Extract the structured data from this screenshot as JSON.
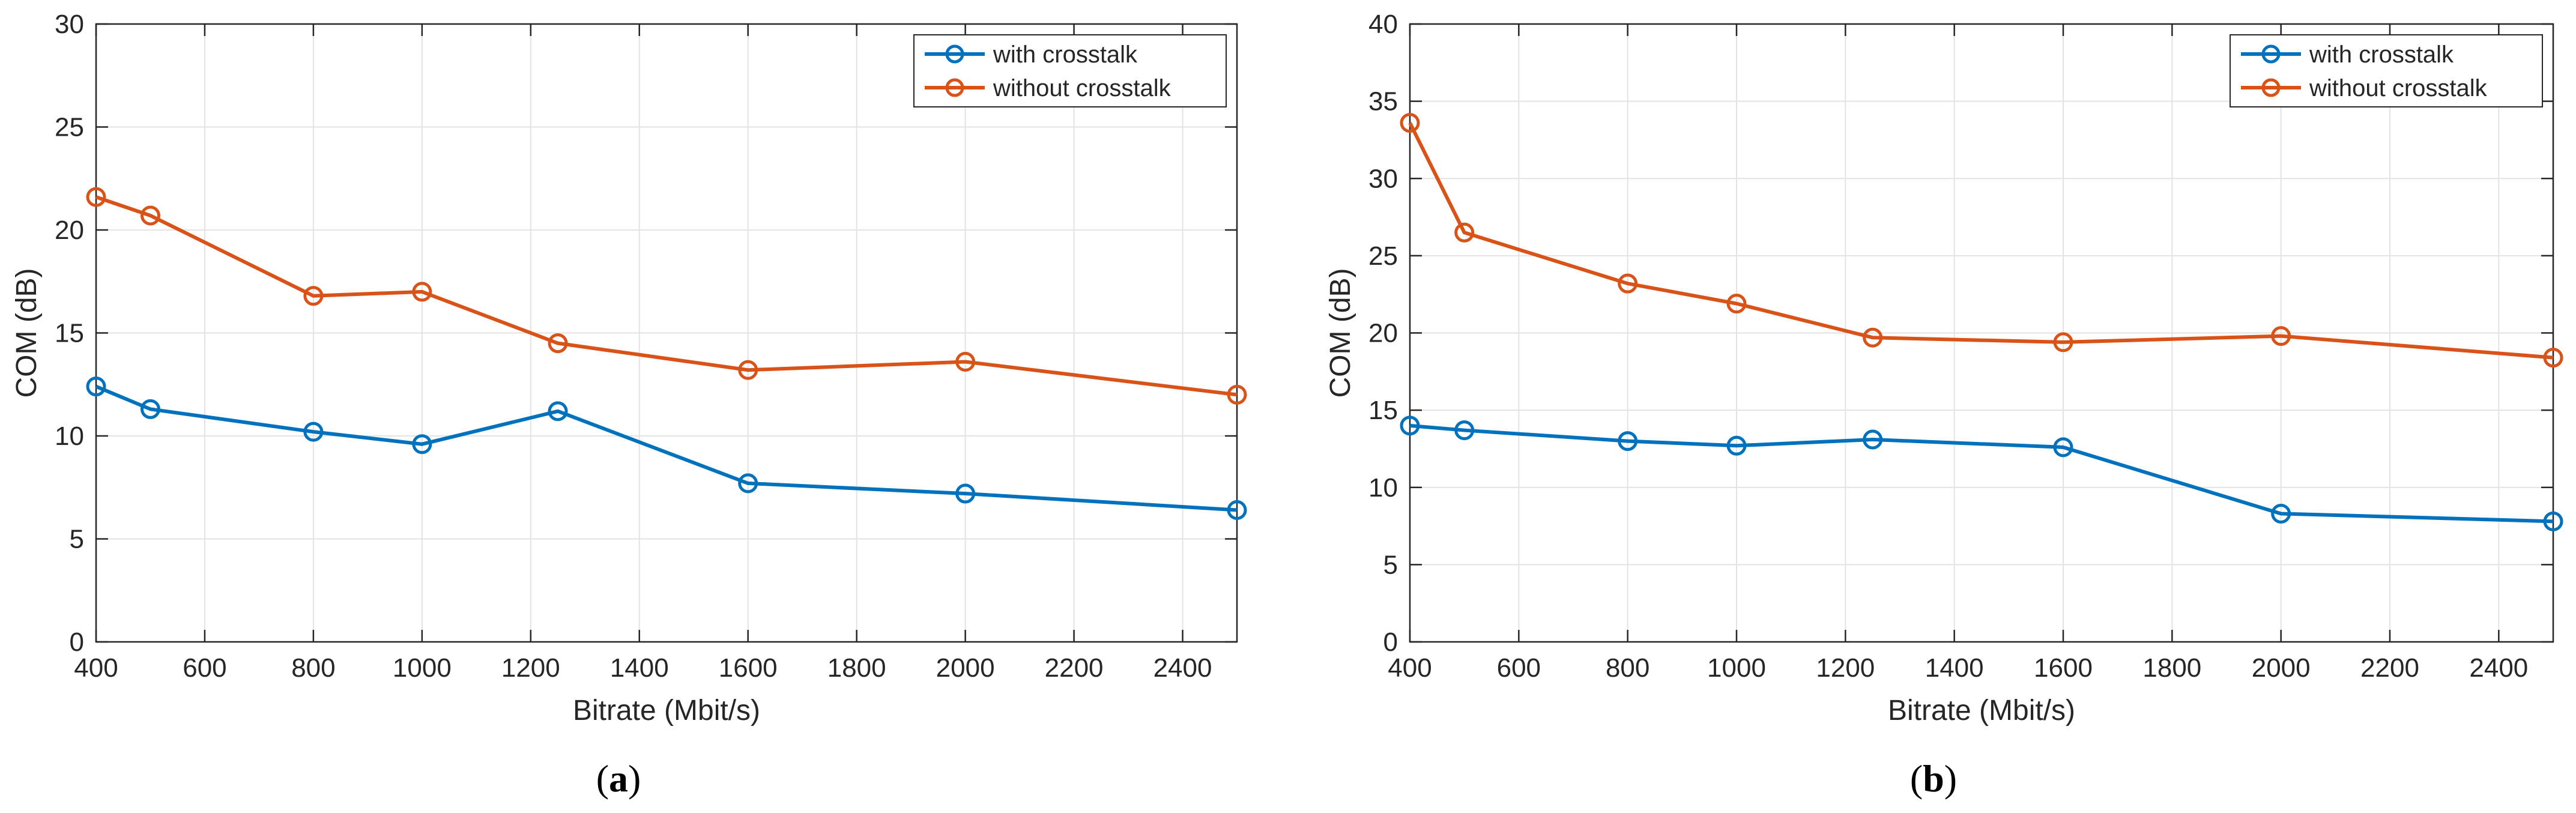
{
  "chart_data": [
    {
      "type": "line",
      "panel_label": "a",
      "xlabel": "Bitrate (Mbit/s)",
      "ylabel": "COM (dB)",
      "xlim": [
        400,
        2500
      ],
      "ylim": [
        0,
        30
      ],
      "xticks": [
        400,
        600,
        800,
        1000,
        1200,
        1400,
        1600,
        1800,
        2000,
        2200,
        2400
      ],
      "yticks": [
        0,
        5,
        10,
        15,
        20,
        25,
        30
      ],
      "grid": true,
      "legend_position": "top-right",
      "x": [
        400,
        500,
        800,
        1000,
        1250,
        1600,
        2000,
        2500
      ],
      "series": [
        {
          "name": "with crosstalk",
          "color": "#0072BD",
          "values": [
            12.4,
            11.3,
            10.2,
            9.6,
            11.2,
            7.7,
            7.2,
            6.4
          ]
        },
        {
          "name": "without crosstalk",
          "color": "#D95319",
          "values": [
            21.6,
            20.7,
            16.8,
            17.0,
            14.5,
            13.2,
            13.6,
            12.0
          ]
        }
      ]
    },
    {
      "type": "line",
      "panel_label": "b",
      "xlabel": "Bitrate (Mbit/s)",
      "ylabel": "COM (dB)",
      "xlim": [
        400,
        2500
      ],
      "ylim": [
        0,
        40
      ],
      "xticks": [
        400,
        600,
        800,
        1000,
        1200,
        1400,
        1600,
        1800,
        2000,
        2200,
        2400
      ],
      "yticks": [
        0,
        5,
        10,
        15,
        20,
        25,
        30,
        35,
        40
      ],
      "grid": true,
      "legend_position": "top-right",
      "x": [
        400,
        500,
        800,
        1000,
        1250,
        1600,
        2000,
        2500
      ],
      "series": [
        {
          "name": "with crosstalk",
          "color": "#0072BD",
          "values": [
            14.0,
            13.7,
            13.0,
            12.7,
            13.1,
            12.6,
            8.3,
            7.8
          ]
        },
        {
          "name": "without crosstalk",
          "color": "#D95319",
          "values": [
            33.6,
            26.5,
            23.2,
            21.9,
            19.7,
            19.4,
            19.8,
            18.4
          ]
        }
      ]
    }
  ]
}
